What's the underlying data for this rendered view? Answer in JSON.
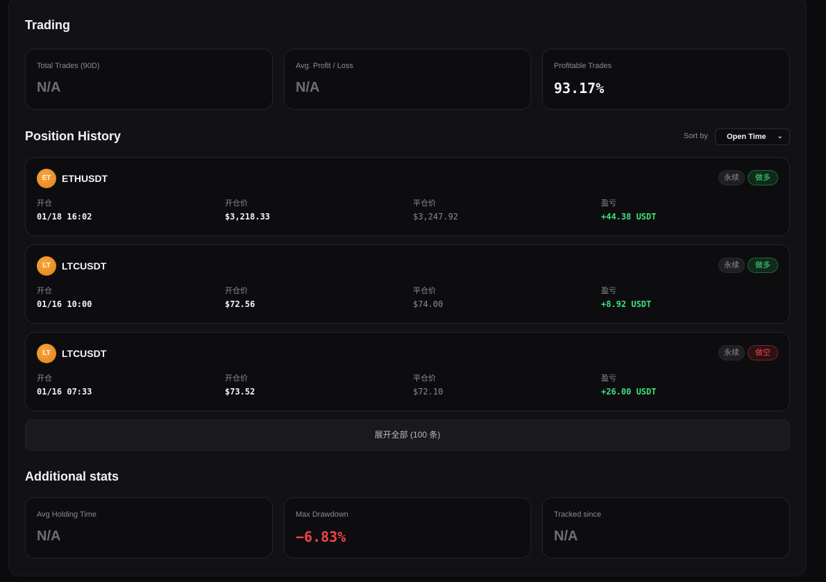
{
  "trading": {
    "title": "Trading",
    "stats": [
      {
        "label": "Total Trades (90D)",
        "value": "N/A"
      },
      {
        "label": "Avg. Profit / Loss",
        "value": "N/A"
      },
      {
        "label": "Profitable Trades",
        "value": "93.17%"
      }
    ]
  },
  "position_history": {
    "title": "Position History",
    "sort_label": "Sort by",
    "sort_value": "Open Time",
    "columns": [
      "开仓",
      "开仓价",
      "平仓价",
      "盈亏"
    ],
    "positions": [
      {
        "coin": "ET",
        "symbol": "ETHUSDT",
        "type_tag": "永续",
        "side_tag": "做多",
        "side": "long",
        "open_time": "01/18 16:02",
        "open_price": "$3,218.33",
        "close_price": "$3,247.92",
        "pnl": "+44.38 USDT"
      },
      {
        "coin": "LT",
        "symbol": "LTCUSDT",
        "type_tag": "永续",
        "side_tag": "做多",
        "side": "long",
        "open_time": "01/16 10:00",
        "open_price": "$72.56",
        "close_price": "$74.00",
        "pnl": "+8.92 USDT"
      },
      {
        "coin": "LT",
        "symbol": "LTCUSDT",
        "type_tag": "永续",
        "side_tag": "做空",
        "side": "short",
        "open_time": "01/16 07:33",
        "open_price": "$73.52",
        "close_price": "$72.10",
        "pnl": "+26.00 USDT"
      }
    ],
    "expand_label": "展开全部 (100 条)"
  },
  "additional": {
    "title": "Additional stats",
    "stats": [
      {
        "label": "Avg Holding Time",
        "value": "N/A"
      },
      {
        "label": "Max Drawdown",
        "value": "−6.83%"
      },
      {
        "label": "Tracked since",
        "value": "N/A"
      }
    ]
  },
  "colors": {
    "positive": "#3ee07a",
    "negative": "#f0444a",
    "coin": "#f29a2e"
  }
}
